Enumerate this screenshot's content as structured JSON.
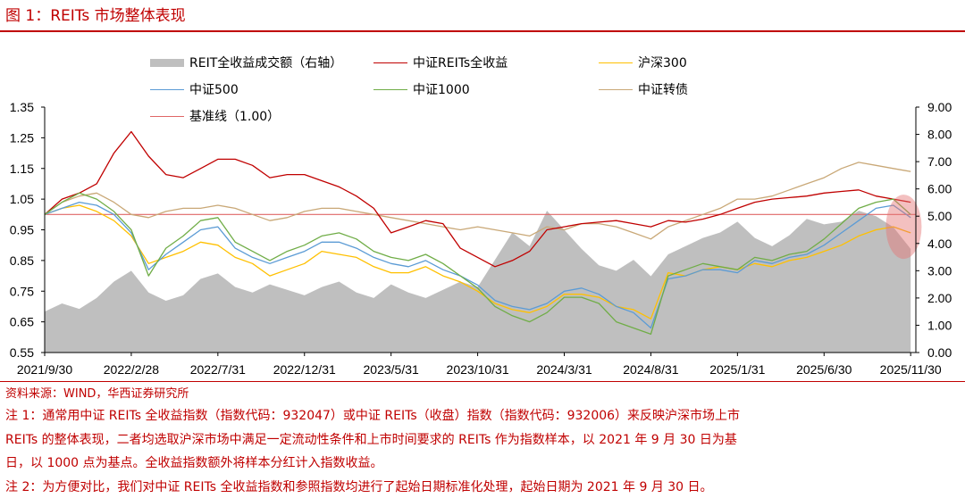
{
  "title": "图 1：REITs 市场整体表现",
  "source": "资料来源：WIND，华西证券研究所",
  "notes": [
    "注 1：通常用中证 REITs 全收益指数（指数代码：932047）或中证 REITs（收盘）指数（指数代码：932006）来反映沪深市场上市",
    "REITs 的整体表现，二者均选取沪深市场中满足一定流动性条件和上市时间要求的 REITs 作为指数样本，以 2021 年 9 月 30 日为基",
    "日，以 1000 点为基点。全收益指数额外将样本分红计入指数收益。",
    "注 2：为方便对比，我们对中证 REITs 全收益指数和参照指数均进行了起始日期标准化处理，起始日期为 2021 年 9 月 30 日。"
  ],
  "chart_data": {
    "type": "line",
    "x_ticks": [
      "2021/9/30",
      "2022/2/28",
      "2022/7/31",
      "2022/12/31",
      "2023/5/31",
      "2023/10/31",
      "2024/3/31",
      "2024/8/31",
      "2025/1/31",
      "2025/6/30",
      "2025/11/30"
    ],
    "x_tick_months": [
      0,
      5,
      10,
      15,
      20,
      25,
      30,
      35,
      40,
      45,
      50
    ],
    "x_range_months": [
      0,
      50.3
    ],
    "y_left": {
      "min": 0.55,
      "max": 1.35,
      "ticks": [
        "0.55",
        "0.65",
        "0.75",
        "0.85",
        "0.95",
        "1.05",
        "1.15",
        "1.25",
        "1.35"
      ]
    },
    "y_right": {
      "min": 0,
      "max": 9,
      "ticks": [
        "0.00",
        "1.00",
        "2.00",
        "3.00",
        "4.00",
        "5.00",
        "6.00",
        "7.00",
        "8.00",
        "9.00"
      ]
    },
    "baseline": 1.0,
    "series": [
      {
        "name": "REIT全收益成交额（右轴）",
        "kind": "area",
        "axis": "right",
        "color": "#bfbfbf",
        "x": [
          0,
          1,
          2,
          3,
          4,
          5,
          6,
          7,
          8,
          9,
          10,
          11,
          12,
          13,
          14,
          15,
          16,
          17,
          18,
          19,
          20,
          21,
          22,
          23,
          24,
          25,
          26,
          27,
          28,
          29,
          30,
          31,
          32,
          33,
          34,
          35,
          36,
          37,
          38,
          39,
          40,
          41,
          42,
          43,
          44,
          45,
          46,
          47,
          48,
          49,
          50
        ],
        "values": [
          1.5,
          1.8,
          1.6,
          2.0,
          2.6,
          3.0,
          2.2,
          1.9,
          2.1,
          2.7,
          2.9,
          2.4,
          2.2,
          2.5,
          2.3,
          2.1,
          2.4,
          2.6,
          2.2,
          2.0,
          2.5,
          2.2,
          2.0,
          2.3,
          2.6,
          2.4,
          3.4,
          4.4,
          3.9,
          5.2,
          4.5,
          3.8,
          3.2,
          3.0,
          3.4,
          2.8,
          3.6,
          3.9,
          4.2,
          4.4,
          4.8,
          4.2,
          3.9,
          4.3,
          4.9,
          4.7,
          4.8,
          5.2,
          5.0,
          4.6,
          3.8
        ]
      },
      {
        "name": "中证REITs全收益",
        "kind": "line",
        "axis": "left",
        "color": "#c00000",
        "x": [
          0,
          1,
          2,
          3,
          4,
          5,
          6,
          7,
          8,
          9,
          10,
          11,
          12,
          13,
          14,
          15,
          16,
          17,
          18,
          19,
          20,
          21,
          22,
          23,
          24,
          25,
          26,
          27,
          28,
          29,
          30,
          31,
          32,
          33,
          34,
          35,
          36,
          37,
          38,
          39,
          40,
          41,
          42,
          43,
          44,
          45,
          46,
          47,
          48,
          49,
          50
        ],
        "values": [
          1.0,
          1.05,
          1.07,
          1.1,
          1.2,
          1.27,
          1.19,
          1.13,
          1.12,
          1.15,
          1.18,
          1.18,
          1.16,
          1.12,
          1.13,
          1.13,
          1.11,
          1.09,
          1.06,
          1.02,
          0.94,
          0.96,
          0.98,
          0.97,
          0.89,
          0.86,
          0.83,
          0.85,
          0.88,
          0.95,
          0.96,
          0.97,
          0.975,
          0.98,
          0.97,
          0.96,
          0.98,
          0.975,
          0.985,
          1.0,
          1.02,
          1.04,
          1.05,
          1.055,
          1.06,
          1.07,
          1.075,
          1.08,
          1.06,
          1.05,
          1.04
        ]
      },
      {
        "name": "沪深300",
        "kind": "line",
        "axis": "left",
        "color": "#ffc000",
        "x": [
          0,
          1,
          2,
          3,
          4,
          5,
          6,
          7,
          8,
          9,
          10,
          11,
          12,
          13,
          14,
          15,
          16,
          17,
          18,
          19,
          20,
          21,
          22,
          23,
          24,
          25,
          26,
          27,
          28,
          29,
          30,
          31,
          32,
          33,
          34,
          35,
          36,
          37,
          38,
          39,
          40,
          41,
          42,
          43,
          44,
          45,
          46,
          47,
          48,
          49,
          50
        ],
        "values": [
          1.0,
          1.02,
          1.03,
          1.01,
          0.98,
          0.93,
          0.84,
          0.86,
          0.88,
          0.91,
          0.9,
          0.86,
          0.84,
          0.8,
          0.82,
          0.84,
          0.88,
          0.87,
          0.86,
          0.83,
          0.81,
          0.81,
          0.83,
          0.8,
          0.78,
          0.75,
          0.71,
          0.69,
          0.68,
          0.7,
          0.74,
          0.74,
          0.73,
          0.7,
          0.69,
          0.66,
          0.81,
          0.8,
          0.82,
          0.83,
          0.82,
          0.84,
          0.83,
          0.85,
          0.86,
          0.88,
          0.9,
          0.93,
          0.95,
          0.96,
          0.94
        ]
      },
      {
        "name": "中证500",
        "kind": "line",
        "axis": "left",
        "color": "#5b9bd5",
        "x": [
          0,
          1,
          2,
          3,
          4,
          5,
          6,
          7,
          8,
          9,
          10,
          11,
          12,
          13,
          14,
          15,
          16,
          17,
          18,
          19,
          20,
          21,
          22,
          23,
          24,
          25,
          26,
          27,
          28,
          29,
          30,
          31,
          32,
          33,
          34,
          35,
          36,
          37,
          38,
          39,
          40,
          41,
          42,
          43,
          44,
          45,
          46,
          47,
          48,
          49,
          50
        ],
        "values": [
          1.0,
          1.02,
          1.04,
          1.03,
          1.0,
          0.94,
          0.82,
          0.87,
          0.91,
          0.95,
          0.96,
          0.89,
          0.86,
          0.84,
          0.86,
          0.88,
          0.91,
          0.91,
          0.89,
          0.86,
          0.84,
          0.83,
          0.85,
          0.82,
          0.8,
          0.77,
          0.72,
          0.7,
          0.69,
          0.71,
          0.75,
          0.76,
          0.74,
          0.7,
          0.68,
          0.63,
          0.79,
          0.8,
          0.82,
          0.82,
          0.81,
          0.85,
          0.84,
          0.86,
          0.87,
          0.9,
          0.94,
          0.98,
          1.02,
          1.03,
          0.99
        ]
      },
      {
        "name": "中证1000",
        "kind": "line",
        "axis": "left",
        "color": "#70ad47",
        "x": [
          0,
          1,
          2,
          3,
          4,
          5,
          6,
          7,
          8,
          9,
          10,
          11,
          12,
          13,
          14,
          15,
          16,
          17,
          18,
          19,
          20,
          21,
          22,
          23,
          24,
          25,
          26,
          27,
          28,
          29,
          30,
          31,
          32,
          33,
          34,
          35,
          36,
          37,
          38,
          39,
          40,
          41,
          42,
          43,
          44,
          45,
          46,
          47,
          48,
          49,
          50
        ],
        "values": [
          1.0,
          1.04,
          1.07,
          1.05,
          1.01,
          0.95,
          0.8,
          0.89,
          0.93,
          0.98,
          0.99,
          0.91,
          0.88,
          0.85,
          0.88,
          0.9,
          0.93,
          0.94,
          0.92,
          0.88,
          0.86,
          0.85,
          0.87,
          0.84,
          0.8,
          0.76,
          0.7,
          0.67,
          0.65,
          0.68,
          0.73,
          0.73,
          0.71,
          0.65,
          0.63,
          0.61,
          0.8,
          0.82,
          0.84,
          0.83,
          0.82,
          0.86,
          0.85,
          0.87,
          0.88,
          0.92,
          0.97,
          1.02,
          1.04,
          1.05,
          1.0
        ]
      },
      {
        "name": "中证转债",
        "kind": "line",
        "axis": "left",
        "color": "#c9a877",
        "x": [
          0,
          1,
          2,
          3,
          4,
          5,
          6,
          7,
          8,
          9,
          10,
          11,
          12,
          13,
          14,
          15,
          16,
          17,
          18,
          19,
          20,
          21,
          22,
          23,
          24,
          25,
          26,
          27,
          28,
          29,
          30,
          31,
          32,
          33,
          34,
          35,
          36,
          37,
          38,
          39,
          40,
          41,
          42,
          43,
          44,
          45,
          46,
          47,
          48,
          49,
          50
        ],
        "values": [
          1.0,
          1.04,
          1.06,
          1.07,
          1.04,
          1.0,
          0.99,
          1.01,
          1.02,
          1.02,
          1.03,
          1.02,
          1.0,
          0.98,
          0.99,
          1.01,
          1.02,
          1.02,
          1.01,
          1.0,
          0.99,
          0.98,
          0.97,
          0.96,
          0.95,
          0.96,
          0.95,
          0.94,
          0.93,
          0.96,
          0.95,
          0.97,
          0.97,
          0.96,
          0.94,
          0.92,
          0.96,
          0.98,
          1.0,
          1.02,
          1.05,
          1.05,
          1.06,
          1.08,
          1.1,
          1.12,
          1.15,
          1.17,
          1.16,
          1.15,
          1.14
        ]
      },
      {
        "name": "基准线（1.00）",
        "kind": "hline",
        "axis": "left",
        "color": "#e06666",
        "value": 1.0
      }
    ],
    "annotation": {
      "type": "highlight-ellipse",
      "color": "#e57373",
      "x_month": 49.6,
      "y_left": 0.96
    }
  }
}
